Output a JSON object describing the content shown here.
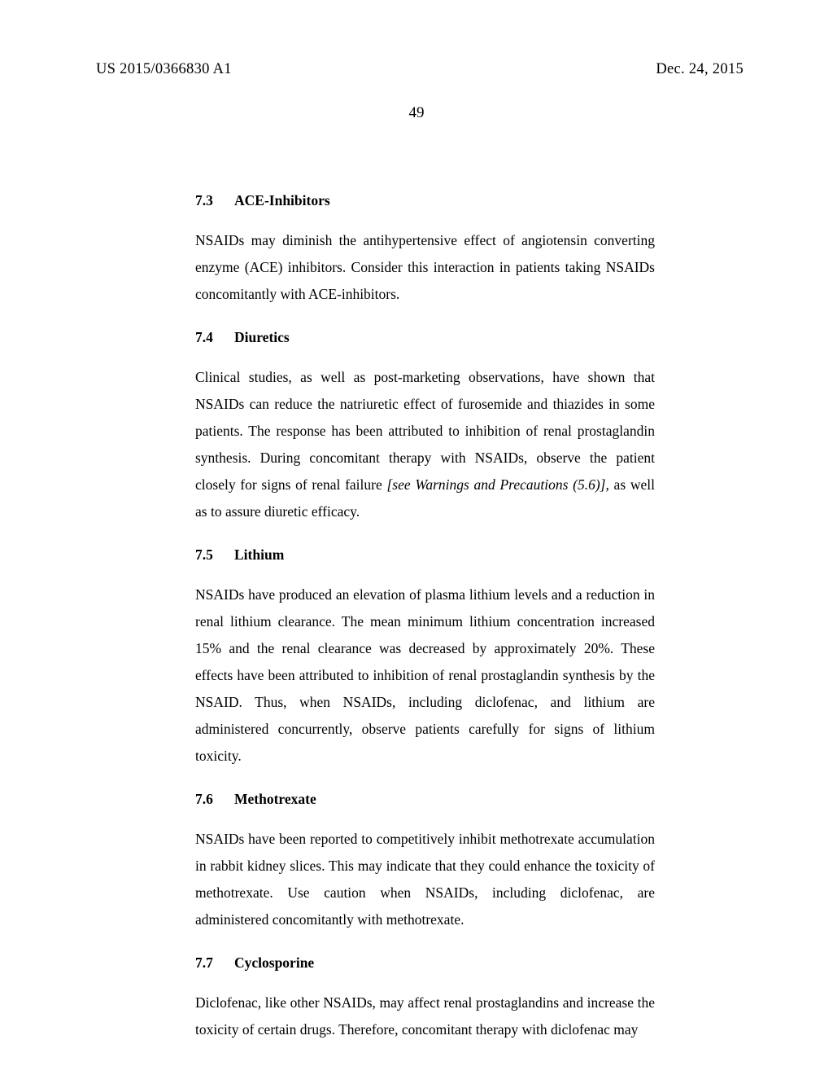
{
  "header": {
    "pub_number": "US 2015/0366830 A1",
    "pub_date": "Dec. 24, 2015"
  },
  "page_number": "49",
  "sections": [
    {
      "num": "7.3",
      "title": "ACE-Inhibitors",
      "body": "NSAIDs may diminish the antihypertensive effect of angiotensin converting enzyme (ACE) inhibitors. Consider this interaction in patients taking NSAIDs concomitantly with ACE-inhibitors."
    },
    {
      "num": "7.4",
      "title": "Diuretics",
      "body_pre": "Clinical studies, as well as post-marketing observations, have shown that NSAIDs can reduce the natriuretic effect of furosemide and thiazides in some patients. The response has been attributed to inhibition of renal prostaglandin synthesis. During concomitant therapy with NSAIDs, observe the patient closely for signs of renal failure ",
      "body_italic": "[see Warnings and Precautions (5.6)]",
      "body_post": ", as well as to assure diuretic efficacy."
    },
    {
      "num": "7.5",
      "title": "Lithium",
      "body": "NSAIDs have produced an elevation of plasma lithium levels and a reduction in renal lithium clearance. The mean minimum lithium concentration increased 15% and the renal clearance was decreased by approximately 20%. These effects have been attributed to inhibition of renal prostaglandin synthesis by the NSAID. Thus, when NSAIDs, including diclofenac, and lithium are administered concurrently, observe patients carefully for signs of lithium toxicity."
    },
    {
      "num": "7.6",
      "title": "Methotrexate",
      "body": "NSAIDs have been reported to competitively inhibit methotrexate accumulation in rabbit kidney slices. This may indicate that they could enhance the toxicity of methotrexate. Use caution when NSAIDs, including diclofenac, are administered concomitantly with methotrexate."
    },
    {
      "num": "7.7",
      "title": "Cyclosporine",
      "body": "Diclofenac, like other NSAIDs, may affect renal prostaglandins and increase the toxicity of certain drugs. Therefore, concomitant therapy with diclofenac may"
    }
  ]
}
